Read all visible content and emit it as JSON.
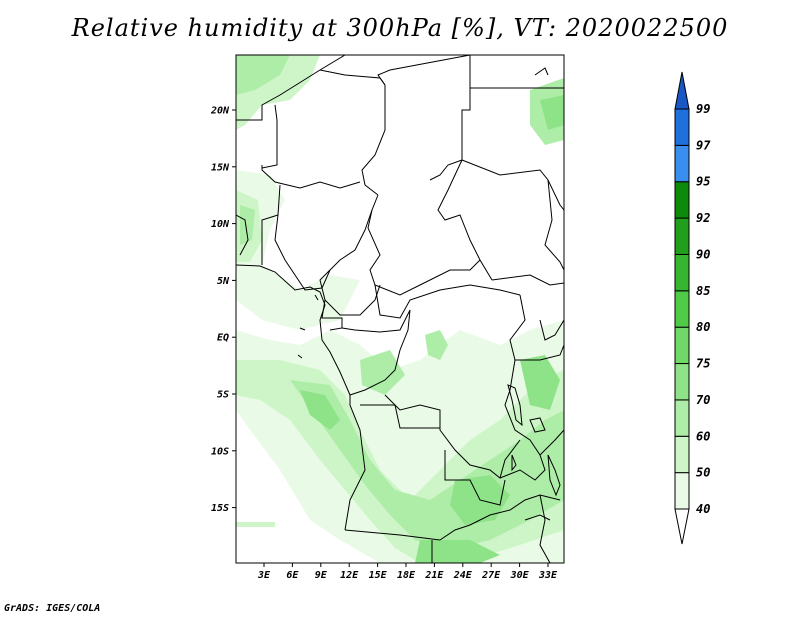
{
  "title": "Relative humidity at 300hPa [%], VT: 2020022500",
  "footer": "GrADS: IGES/COLA",
  "lat_labels": [
    "20N",
    "15N",
    "10N",
    "5N",
    "EQ",
    "5S",
    "10S",
    "15S"
  ],
  "lon_labels": [
    "3E",
    "6E",
    "9E",
    "12E",
    "15E",
    "18E",
    "21E",
    "24E",
    "27E",
    "30E",
    "33E"
  ],
  "colorbar": {
    "levels": [
      "99",
      "97",
      "95",
      "92",
      "90",
      "85",
      "80",
      "75",
      "70",
      "60",
      "50",
      "40"
    ],
    "colors": [
      "#ffffff",
      "#e9fbe6",
      "#cdf5c8",
      "#aeeda7",
      "#8ee388",
      "#6fd867",
      "#4fcb48",
      "#35b530",
      "#209e1c",
      "#0d8a0a",
      "#3a8ef0",
      "#1f6fdc",
      "#1857c4"
    ]
  }
}
